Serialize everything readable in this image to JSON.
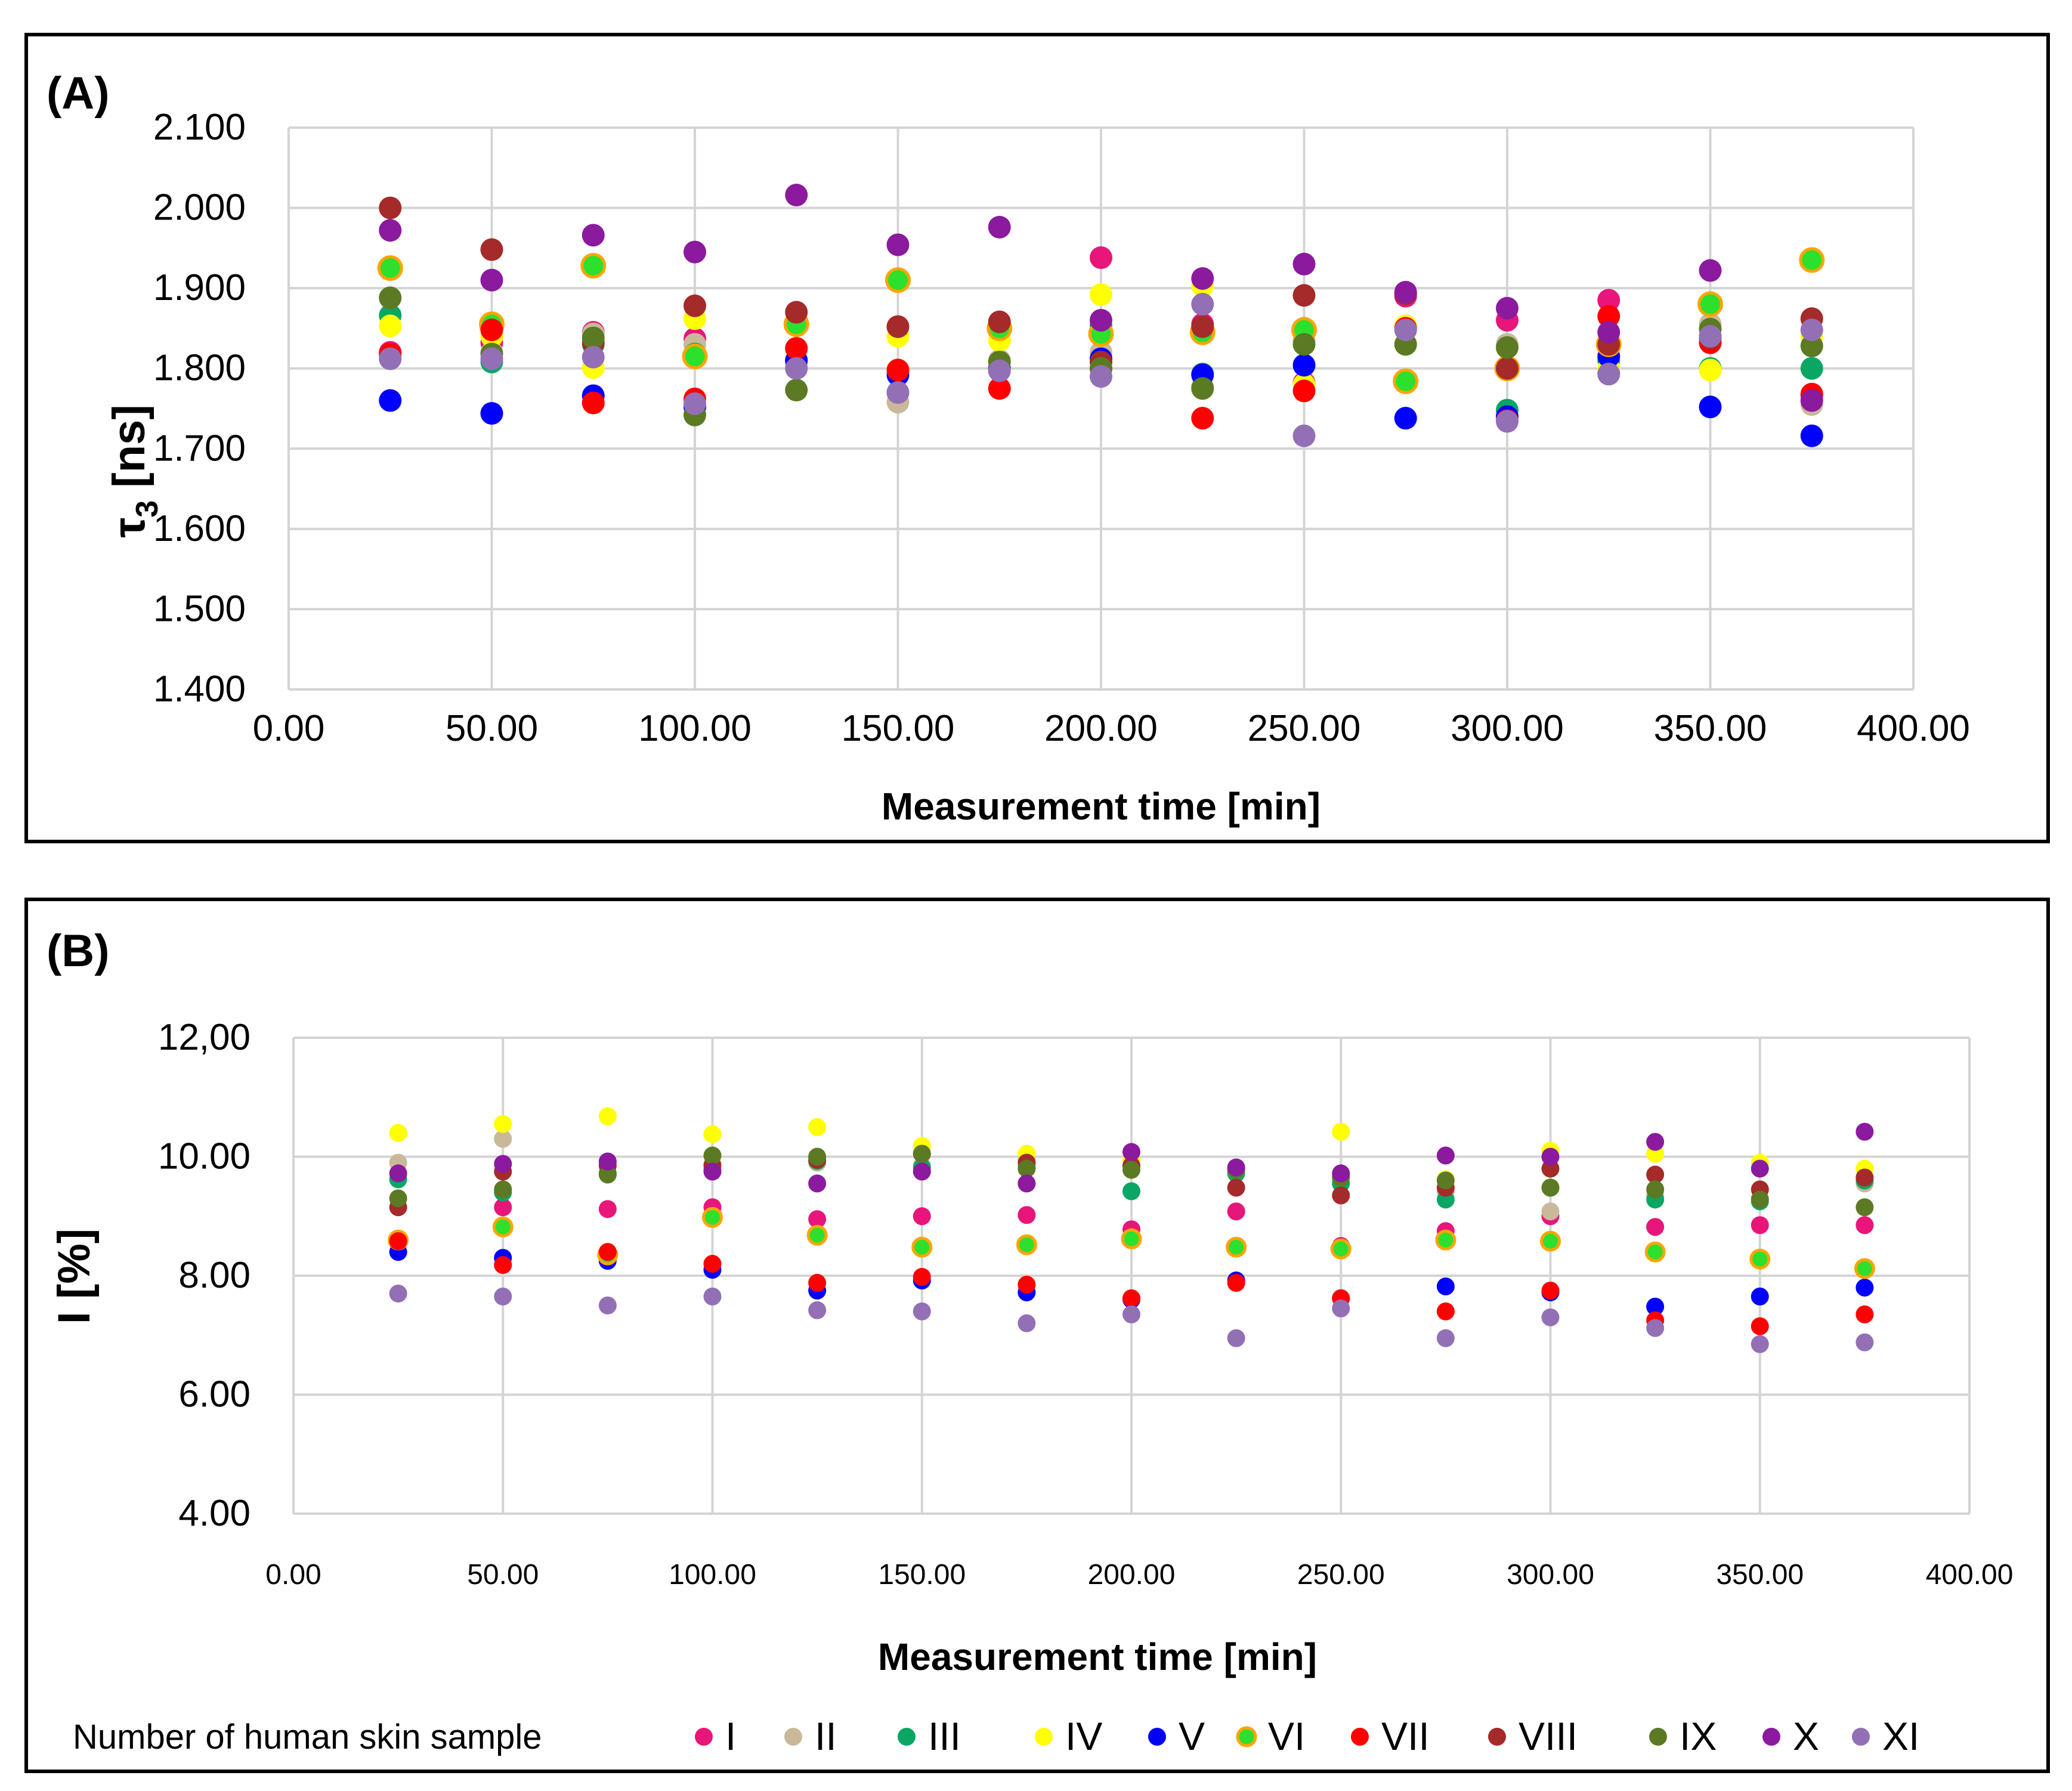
{
  "panels": {
    "a_label": "(A)",
    "b_label": "(B)"
  },
  "legend": {
    "title": "Number of human skin sample",
    "entries": [
      {
        "label": "I",
        "color": "#e8157a"
      },
      {
        "label": "II",
        "color": "#c9b99a"
      },
      {
        "label": "III",
        "color": "#0aa663"
      },
      {
        "label": "IV",
        "color": "#ffff00"
      },
      {
        "label": "V",
        "color": "#0000ff"
      },
      {
        "label": "VI",
        "color": "#2de02d",
        "edge": "#ffa500"
      },
      {
        "label": "VII",
        "color": "#ff0000"
      },
      {
        "label": "VIII",
        "color": "#a52a2a"
      },
      {
        "label": "IX",
        "color": "#5b7a23"
      },
      {
        "label": "X",
        "color": "#8b1a9e"
      },
      {
        "label": "XI",
        "color": "#9370b5"
      }
    ]
  },
  "chart_data": [
    {
      "type": "scatter",
      "panel": "(A)",
      "title": "",
      "xlabel": "Measurement time [min]",
      "ylabel_main": "τ",
      "ylabel_sub": "3",
      "ylabel_unit": " [ns]",
      "xlim": [
        0,
        400
      ],
      "ylim": [
        1.4,
        2.1
      ],
      "x_ticks": [
        0,
        50,
        100,
        150,
        200,
        250,
        300,
        350,
        400
      ],
      "x_tick_labels": [
        "0.00",
        "50.00",
        "100.00",
        "150.00",
        "200.00",
        "250.00",
        "300.00",
        "350.00",
        "400.00"
      ],
      "y_ticks": [
        1.4,
        1.5,
        1.6,
        1.7,
        1.8,
        1.9,
        2.0,
        2.1
      ],
      "y_tick_labels": [
        "1.400",
        "1.500",
        "1.600",
        "1.700",
        "1.800",
        "1.900",
        "2.000",
        "2.100"
      ],
      "grid": true,
      "x": [
        25,
        50,
        75,
        100,
        125,
        150,
        175,
        200,
        225,
        250,
        275,
        300,
        325,
        350,
        375
      ],
      "series": [
        {
          "name": "I",
          "values": [
            1.82,
            1.832,
            1.845,
            1.837,
            1.81,
            1.852,
            1.855,
            1.938,
            1.855,
            1.782,
            1.89,
            1.86,
            1.885,
            1.84,
            1.766
          ]
        },
        {
          "name": "II",
          "values": [
            1.815,
            1.82,
            1.843,
            1.83,
            1.805,
            1.758,
            1.81,
            1.82,
            1.777,
            1.835,
            1.83,
            1.83,
            1.795,
            1.855,
            1.755
          ]
        },
        {
          "name": "III",
          "values": [
            1.866,
            1.808,
            1.83,
            1.818,
            1.857,
            1.91,
            1.852,
            1.853,
            1.793,
            1.85,
            1.785,
            1.748,
            1.81,
            1.8,
            1.8
          ]
        },
        {
          "name": "IV",
          "values": [
            1.853,
            1.84,
            1.801,
            1.862,
            1.81,
            1.84,
            1.835,
            1.892,
            1.903,
            1.78,
            1.853,
            1.8,
            1.8,
            1.798,
            1.84
          ]
        },
        {
          "name": "V",
          "values": [
            1.76,
            1.744,
            1.766,
            1.752,
            1.81,
            1.792,
            1.8,
            1.812,
            1.792,
            1.804,
            1.738,
            1.74,
            1.815,
            1.752,
            1.716
          ]
        },
        {
          "name": "VI",
          "values": [
            1.925,
            1.855,
            1.928,
            1.815,
            1.855,
            1.91,
            1.85,
            1.843,
            1.845,
            1.848,
            1.784,
            1.8,
            1.83,
            1.88,
            1.935
          ]
        },
        {
          "name": "VII",
          "values": [
            1.818,
            1.848,
            1.757,
            1.762,
            1.825,
            1.798,
            1.775,
            1.8,
            1.738,
            1.772,
            1.85,
            1.735,
            1.865,
            1.832,
            1.768
          ]
        },
        {
          "name": "VIII",
          "values": [
            2.0,
            1.948,
            1.832,
            1.878,
            1.87,
            1.852,
            1.858,
            1.808,
            1.852,
            1.891,
            1.893,
            1.8,
            1.83,
            1.838,
            1.862
          ]
        },
        {
          "name": "IX",
          "values": [
            1.888,
            1.818,
            1.838,
            1.742,
            1.773,
            1.77,
            1.808,
            1.8,
            1.775,
            1.83,
            1.83,
            1.826,
            1.793,
            1.849,
            1.828
          ]
        },
        {
          "name": "X",
          "values": [
            1.972,
            1.91,
            1.966,
            1.945,
            2.016,
            1.954,
            1.976,
            1.86,
            1.912,
            1.93,
            1.895,
            1.875,
            1.845,
            1.922,
            1.76
          ]
        },
        {
          "name": "XI",
          "values": [
            1.812,
            1.812,
            1.814,
            1.756,
            1.8,
            1.77,
            1.797,
            1.79,
            1.88,
            1.716,
            1.848,
            1.734,
            1.793,
            1.84,
            1.848
          ]
        }
      ]
    },
    {
      "type": "scatter",
      "panel": "(B)",
      "title": "",
      "xlabel": "Measurement time [min]",
      "ylabel": "I [%]",
      "xlim": [
        0,
        400
      ],
      "ylim": [
        4,
        12
      ],
      "x_ticks": [
        0,
        50,
        100,
        150,
        200,
        250,
        300,
        350,
        400
      ],
      "x_tick_labels": [
        "0.00",
        "50.00",
        "100.00",
        "150.00",
        "200.00",
        "250.00",
        "300.00",
        "350.00",
        "400.00"
      ],
      "y_ticks": [
        4,
        6,
        8,
        10,
        12
      ],
      "y_tick_labels": [
        "4.00",
        "6.00",
        "8.00",
        "10.00",
        "12,00"
      ],
      "grid": true,
      "x": [
        25,
        50,
        75,
        100,
        125,
        150,
        175,
        200,
        225,
        250,
        275,
        300,
        325,
        350,
        375
      ],
      "series": [
        {
          "name": "I",
          "values": [
            8.55,
            9.15,
            9.12,
            9.15,
            8.95,
            9.0,
            9.02,
            8.78,
            9.08,
            8.5,
            8.75,
            9.0,
            8.82,
            8.85,
            8.85
          ]
        },
        {
          "name": "II",
          "values": [
            9.9,
            10.3,
            9.88,
            9.88,
            9.9,
            9.85,
            9.95,
            9.85,
            9.75,
            9.65,
            9.42,
            9.08,
            9.35,
            9.3,
            9.55
          ]
        },
        {
          "name": "III",
          "values": [
            9.62,
            9.4,
            9.72,
            9.78,
            9.93,
            9.82,
            9.82,
            9.42,
            9.72,
            9.55,
            9.28,
            9.48,
            9.28,
            9.25,
            9.6
          ]
        },
        {
          "name": "IV",
          "values": [
            10.4,
            10.55,
            10.68,
            10.38,
            10.5,
            10.18,
            10.05,
            9.95,
            9.78,
            10.42,
            9.62,
            10.1,
            10.05,
            9.9,
            9.8
          ]
        },
        {
          "name": "V",
          "values": [
            8.4,
            8.3,
            8.25,
            8.1,
            7.75,
            7.92,
            7.72,
            7.6,
            7.92,
            7.62,
            7.82,
            7.72,
            7.48,
            7.65,
            7.8
          ]
        },
        {
          "name": "VI",
          "values": [
            8.6,
            8.82,
            8.35,
            8.98,
            8.68,
            8.48,
            8.52,
            8.62,
            8.48,
            8.45,
            8.6,
            8.58,
            8.4,
            8.28,
            8.12
          ]
        },
        {
          "name": "VII",
          "values": [
            8.58,
            8.18,
            8.4,
            8.2,
            7.88,
            7.98,
            7.85,
            7.62,
            7.88,
            7.62,
            7.4,
            7.75,
            7.25,
            7.15,
            7.35
          ]
        },
        {
          "name": "VIII",
          "values": [
            9.15,
            9.75,
            9.85,
            9.85,
            9.95,
            10.05,
            9.9,
            9.85,
            9.48,
            9.35,
            9.48,
            9.8,
            9.7,
            9.45,
            9.65
          ]
        },
        {
          "name": "IX",
          "values": [
            9.3,
            9.45,
            9.7,
            10.02,
            10.0,
            10.05,
            9.8,
            9.78,
            9.78,
            9.65,
            9.6,
            9.48,
            9.45,
            9.28,
            9.15
          ]
        },
        {
          "name": "X",
          "values": [
            9.72,
            9.88,
            9.92,
            9.75,
            9.55,
            9.75,
            9.55,
            10.08,
            9.82,
            9.72,
            10.02,
            10.0,
            10.25,
            9.8,
            10.42
          ]
        },
        {
          "name": "XI",
          "values": [
            7.7,
            7.65,
            7.5,
            7.65,
            7.42,
            7.4,
            7.2,
            7.35,
            6.95,
            7.45,
            6.95,
            7.3,
            7.12,
            6.85,
            6.88
          ]
        }
      ]
    }
  ]
}
